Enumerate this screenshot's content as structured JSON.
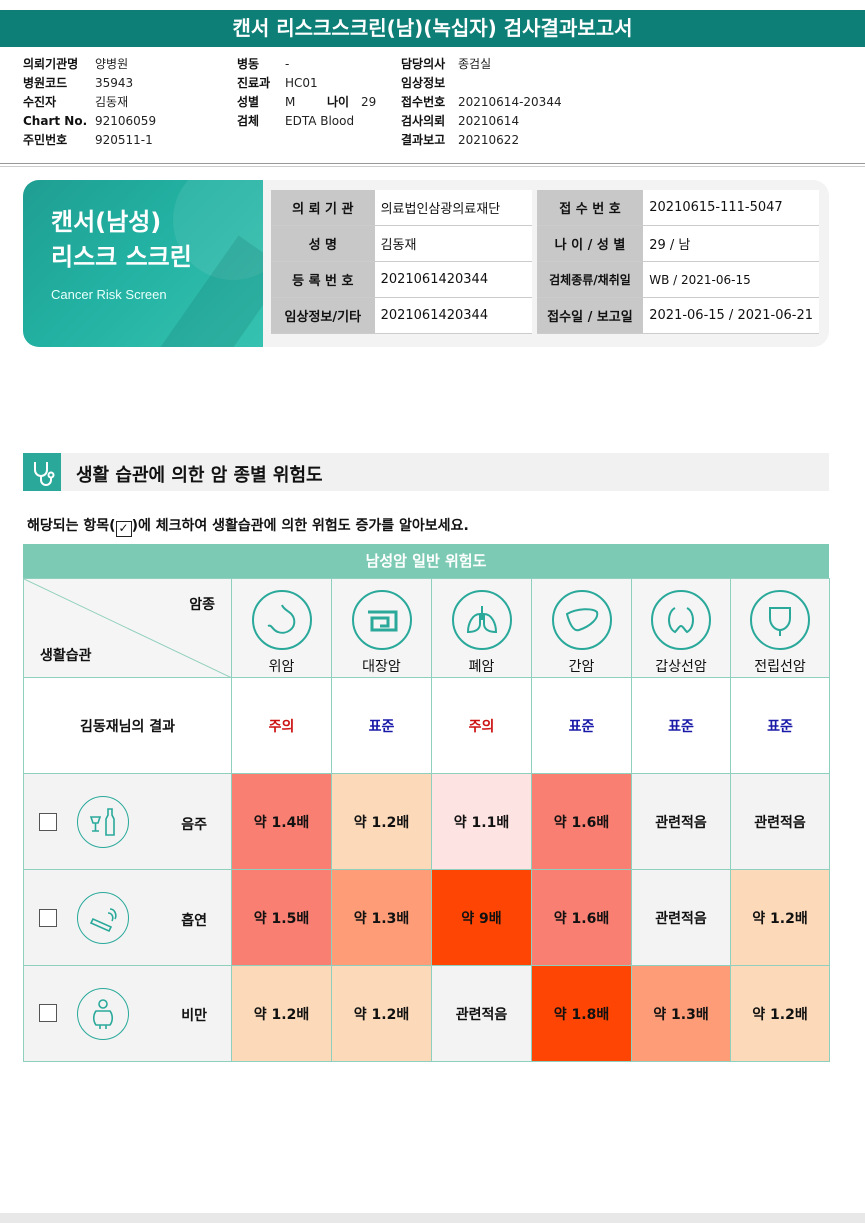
{
  "title": "캔서 리스크스크린(남)(녹십자) 검사결과보고서",
  "header": {
    "col1": [
      {
        "k": "의뢰기관명",
        "v": "양병원"
      },
      {
        "k": "병원코드",
        "v": "35943"
      },
      {
        "k": "수진자",
        "v": "김동재"
      },
      {
        "k": "Chart No.",
        "v": "92106059"
      },
      {
        "k": "주민번호",
        "v": "920511-1"
      }
    ],
    "col2": [
      {
        "k": "병동",
        "v": "-"
      },
      {
        "k": "진료과",
        "v": "HC01"
      },
      {
        "k": "성별",
        "v": "M"
      },
      {
        "k": "검체",
        "v": "EDTA Blood"
      }
    ],
    "age_label": "나이",
    "age_value": "29",
    "col3": [
      {
        "k": "담당의사",
        "v": "종검실"
      },
      {
        "k": "임상정보",
        "v": ""
      },
      {
        "k": "접수번호",
        "v": "20210614-20344"
      },
      {
        "k": "검사의뢰",
        "v": "20210614"
      },
      {
        "k": "결과보고",
        "v": "20210622"
      }
    ]
  },
  "banner": {
    "title1": "캔서(남성)",
    "title2": "리스크 스크린",
    "subtitle": "Cancer Risk Screen",
    "rows": [
      {
        "l1": "의 뢰 기 관",
        "v1": "의료법인삼광의료재단",
        "l2": "접 수 번 호",
        "v2": "20210615-111-5047"
      },
      {
        "l1": "성 명",
        "v1": "김동재",
        "l2": "나 이 / 성 별",
        "v2": "29 / 남"
      },
      {
        "l1": "등 록 번 호",
        "v1": "2021061420344",
        "l2": "검체종류/채취일",
        "v2": "WB / 2021-06-15"
      },
      {
        "l1": "임상정보/기타",
        "v1": "2021061420344",
        "l2": "접수일 / 보고일",
        "v2": "2021-06-15 / 2021-06-21"
      }
    ]
  },
  "section_title": "생활 습관에 의한 암 종별 위험도",
  "instruction_pre": "해당되는 항목(",
  "instruction_post": ")에 체크하여 생활습관에 의한 위험도 증가를 알아보세요.",
  "matrix": {
    "title": "남성암 일반 위험도",
    "corner_top": "암종",
    "corner_bottom": "생활습관",
    "cancers": [
      {
        "name": "위암",
        "icon": "stomach-icon"
      },
      {
        "name": "대장암",
        "icon": "colon-icon"
      },
      {
        "name": "폐암",
        "icon": "lung-icon"
      },
      {
        "name": "간암",
        "icon": "liver-icon"
      },
      {
        "name": "갑상선암",
        "icon": "thyroid-icon"
      },
      {
        "name": "전립선암",
        "icon": "prostate-icon"
      }
    ],
    "result_label": "김동재님의 결과",
    "results": [
      {
        "text": "주의",
        "level": "warn"
      },
      {
        "text": "표준",
        "level": "std"
      },
      {
        "text": "주의",
        "level": "warn"
      },
      {
        "text": "표준",
        "level": "std"
      },
      {
        "text": "표준",
        "level": "std"
      },
      {
        "text": "표준",
        "level": "std"
      }
    ],
    "habits": [
      {
        "name": "음주",
        "icon": "alcohol-icon",
        "cells": [
          {
            "text": "약 1.4배",
            "color": "#f87f72"
          },
          {
            "text": "약 1.2배",
            "color": "#fcdab9"
          },
          {
            "text": "약 1.1배",
            "color": "#fde3e1"
          },
          {
            "text": "약 1.6배",
            "color": "#f87f72"
          },
          {
            "text": "관련적음",
            "color": "#f3f3f3"
          },
          {
            "text": "관련적음",
            "color": "#f3f3f3"
          }
        ]
      },
      {
        "name": "흡연",
        "icon": "smoking-icon",
        "cells": [
          {
            "text": "약 1.5배",
            "color": "#f87f72"
          },
          {
            "text": "약 1.3배",
            "color": "#fd9c77"
          },
          {
            "text": "약 9배",
            "color": "#fe4503"
          },
          {
            "text": "약 1.6배",
            "color": "#f87f72"
          },
          {
            "text": "관련적음",
            "color": "#f3f3f3"
          },
          {
            "text": "약 1.2배",
            "color": "#fcdab9"
          }
        ]
      },
      {
        "name": "비만",
        "icon": "obesity-icon",
        "cells": [
          {
            "text": "약 1.2배",
            "color": "#fcdab9"
          },
          {
            "text": "약 1.2배",
            "color": "#fcdab9"
          },
          {
            "text": "관련적음",
            "color": "#f3f3f3"
          },
          {
            "text": "약 1.8배",
            "color": "#fe4503"
          },
          {
            "text": "약 1.3배",
            "color": "#fd9c77"
          },
          {
            "text": "약 1.2배",
            "color": "#fcdab9"
          }
        ]
      }
    ]
  }
}
